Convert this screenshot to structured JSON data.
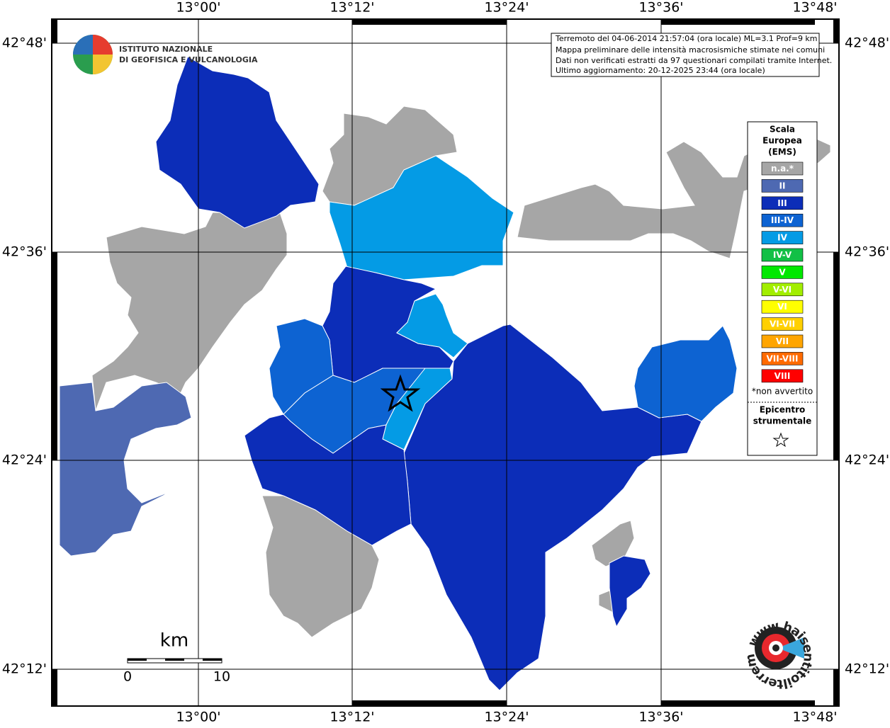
{
  "info": [
    "Terremoto del 04-06-2014 21:57:04 (ora locale) ML=3.1 Prof=9 km",
    "Mappa preliminare delle intensità macrosismiche stimate nei comuni",
    "Dati non verificati estratti da 97 questionari compilati tramite Internet.",
    "Ultimo aggiornamento: 20-12-2025 23:44 (ora locale)"
  ],
  "logo": {
    "line1": "ISTITUTO NAZIONALE",
    "line2": "DI GEOFISICA E VULCANOLOGIA"
  },
  "lon_labels": [
    "13°00'",
    "13°12'",
    "13°24'",
    "13°36'",
    "13°48'"
  ],
  "lat_labels": [
    "42°48'",
    "42°36'",
    "42°24'",
    "42°12'"
  ],
  "legend": {
    "title": [
      "Scala",
      "Europea",
      "(EMS)"
    ],
    "items": [
      {
        "label": "n.a.*",
        "color": "#a6a6a6"
      },
      {
        "label": "II",
        "color": "#4e69b2"
      },
      {
        "label": "III",
        "color": "#0c2db8"
      },
      {
        "label": "III-IV",
        "color": "#0d63d2"
      },
      {
        "label": "IV",
        "color": "#049be5"
      },
      {
        "label": "IV-V",
        "color": "#12c046"
      },
      {
        "label": "V",
        "color": "#00e800"
      },
      {
        "label": "V-VI",
        "color": "#a2ee00"
      },
      {
        "label": "VI",
        "color": "#ffff00"
      },
      {
        "label": "VI-VII",
        "color": "#ffd000"
      },
      {
        "label": "VII",
        "color": "#ffa500"
      },
      {
        "label": "VII-VIII",
        "color": "#ff6a00"
      },
      {
        "label": "VIII",
        "color": "#ff0000"
      }
    ],
    "note": "*non avvertito",
    "epicenter": [
      "Epicentro",
      "strumentale"
    ]
  },
  "scale": {
    "unit": "km",
    "ticks": [
      0,
      10
    ]
  },
  "website": "www.haisentitoilterremoto.it"
}
